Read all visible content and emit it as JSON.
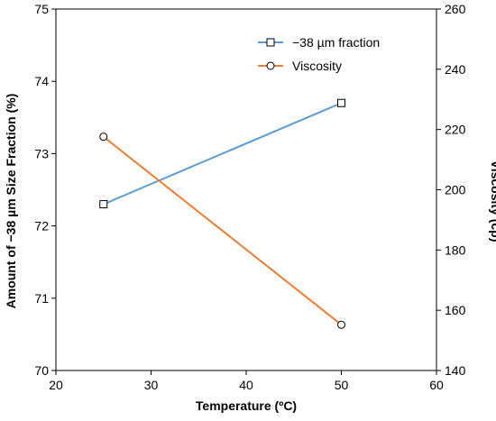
{
  "chart_data": {
    "type": "line",
    "xlabel": "Temperature (ºC)",
    "ylabel_left": "Amount of −38 µm Size Fraction (%)",
    "ylabel_right": "Viscosity (cp)",
    "xlim": [
      20,
      60
    ],
    "ylim_left": [
      70,
      75
    ],
    "ylim_right": [
      140,
      260
    ],
    "x_ticks": [
      20,
      30,
      40,
      50,
      60
    ],
    "y_left_ticks": [
      70,
      71,
      72,
      73,
      74,
      75
    ],
    "y_right_ticks": [
      140,
      160,
      180,
      200,
      220,
      240,
      260
    ],
    "grid": false,
    "legend_position": "top-right",
    "series": [
      {
        "name": "−38 µm fraction",
        "axis": "left",
        "marker": "square",
        "color": "#5B9BD5",
        "x": [
          25,
          50
        ],
        "y": [
          72.3,
          73.7
        ]
      },
      {
        "name": "Viscosity",
        "axis": "right",
        "marker": "circle",
        "color": "#ED7D31",
        "x": [
          25,
          50
        ],
        "y": [
          217.6,
          155.2
        ]
      }
    ]
  }
}
